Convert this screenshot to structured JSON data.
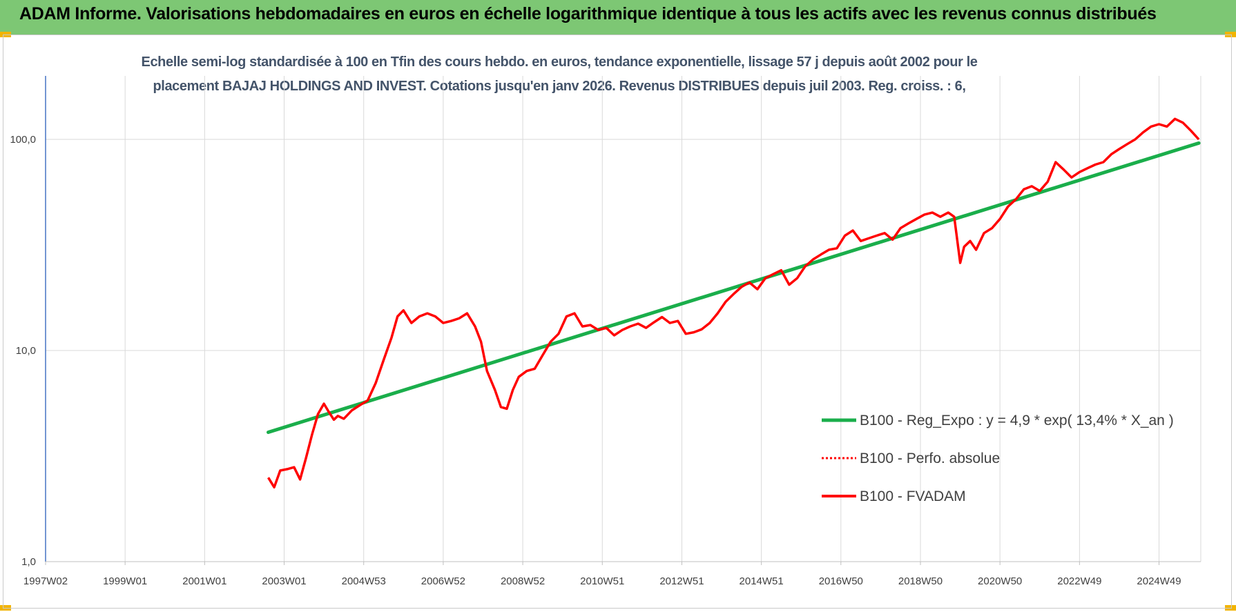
{
  "header": {
    "title": "ADAM Informe. Valorisations hebdomadaires en euros en échelle logarithmique identique à tous les actifs avec les revenus connus distribués"
  },
  "colors": {
    "banner": "#7dc774",
    "corner_accent": "#f2b400",
    "regression": "#1aae4b",
    "fvadam": "#ff0000",
    "subtitle_text": "#44546a",
    "grid": "#d9d9d9",
    "y_axis": "#4472c4"
  },
  "chart_data": {
    "type": "line",
    "title_line1": "Echelle semi-log standardisée à 100 en Tfin des cours hebdo. en euros, tendance exponentielle, lissage 57 j depuis août 2002 pour le",
    "title_line2": "placement BAJAJ HOLDINGS AND INVEST. Cotations jusqu'en janv 2026. Revenus DISTRIBUES depuis juil 2003. Reg. croiss. : 6,",
    "y_scale": "log",
    "ylim": [
      1,
      180
    ],
    "xlim": [
      1997.0,
      2026.05
    ],
    "grid": "vertical",
    "legend_position": "bottom-right",
    "y_ticks": [
      {
        "value": 1,
        "label": "1,0"
      },
      {
        "value": 10,
        "label": "10,0"
      },
      {
        "value": 100,
        "label": "100,0"
      }
    ],
    "x_ticks": [
      {
        "value": 1997.0,
        "label": "1997W02"
      },
      {
        "value": 1999.0,
        "label": "1999W01"
      },
      {
        "value": 2001.0,
        "label": "2001W01"
      },
      {
        "value": 2003.0,
        "label": "2003W01"
      },
      {
        "value": 2005.0,
        "label": "2004W53"
      },
      {
        "value": 2007.0,
        "label": "2006W52"
      },
      {
        "value": 2009.0,
        "label": "2008W52"
      },
      {
        "value": 2011.0,
        "label": "2010W51"
      },
      {
        "value": 2013.0,
        "label": "2012W51"
      },
      {
        "value": 2015.0,
        "label": "2014W51"
      },
      {
        "value": 2017.0,
        "label": "2016W50"
      },
      {
        "value": 2019.0,
        "label": "2018W50"
      },
      {
        "value": 2021.0,
        "label": "2020W50"
      },
      {
        "value": 2023.0,
        "label": "2022W49"
      },
      {
        "value": 2025.0,
        "label": "2024W49"
      }
    ],
    "series": [
      {
        "name": "B100 - Reg_Expo : y = 4,9 * exp( 13,4% *  X_an )",
        "style": "solid-thick",
        "x": [
          2002.6,
          2026.0
        ],
        "y": [
          4.1,
          96
        ]
      },
      {
        "name": "B100 - Perfo. absolue",
        "style": "dotted",
        "x": [],
        "y": []
      },
      {
        "name": "B100 - FVADAM",
        "style": "solid",
        "x": [
          2002.6,
          2002.75,
          2002.9,
          2003.1,
          2003.25,
          2003.4,
          2003.55,
          2003.7,
          2003.85,
          2004.0,
          2004.1,
          2004.25,
          2004.35,
          2004.5,
          2004.7,
          2004.9,
          2005.1,
          2005.3,
          2005.5,
          2005.7,
          2005.85,
          2006.0,
          2006.2,
          2006.4,
          2006.6,
          2006.8,
          2007.0,
          2007.2,
          2007.4,
          2007.6,
          2007.8,
          2007.95,
          2008.1,
          2008.3,
          2008.45,
          2008.6,
          2008.75,
          2008.9,
          2009.1,
          2009.3,
          2009.5,
          2009.7,
          2009.9,
          2010.1,
          2010.3,
          2010.5,
          2010.7,
          2010.9,
          2011.1,
          2011.3,
          2011.5,
          2011.7,
          2011.9,
          2012.1,
          2012.3,
          2012.5,
          2012.7,
          2012.9,
          2013.1,
          2013.3,
          2013.5,
          2013.7,
          2013.9,
          2014.1,
          2014.3,
          2014.5,
          2014.7,
          2014.9,
          2015.1,
          2015.3,
          2015.5,
          2015.7,
          2015.9,
          2016.1,
          2016.3,
          2016.5,
          2016.7,
          2016.9,
          2017.1,
          2017.3,
          2017.5,
          2017.7,
          2017.9,
          2018.1,
          2018.3,
          2018.5,
          2018.7,
          2018.9,
          2019.1,
          2019.3,
          2019.5,
          2019.7,
          2019.85,
          2020.0,
          2020.1,
          2020.25,
          2020.4,
          2020.6,
          2020.8,
          2021.0,
          2021.2,
          2021.4,
          2021.6,
          2021.8,
          2022.0,
          2022.2,
          2022.4,
          2022.6,
          2022.8,
          2023.0,
          2023.2,
          2023.4,
          2023.6,
          2023.8,
          2024.0,
          2024.2,
          2024.4,
          2024.6,
          2024.8,
          2025.0,
          2025.2,
          2025.4,
          2025.6,
          2025.8,
          2026.0
        ],
        "y": [
          2.5,
          2.25,
          2.7,
          2.75,
          2.8,
          2.45,
          3.1,
          4.0,
          5.0,
          5.6,
          5.2,
          4.7,
          4.9,
          4.75,
          5.2,
          5.5,
          5.8,
          7.0,
          9.0,
          11.5,
          14.5,
          15.5,
          13.5,
          14.5,
          15.0,
          14.5,
          13.5,
          13.8,
          14.2,
          15.0,
          13.0,
          11.0,
          8.0,
          6.5,
          5.4,
          5.3,
          6.5,
          7.5,
          8.0,
          8.2,
          9.5,
          11.0,
          12.0,
          14.5,
          15.0,
          13.0,
          13.2,
          12.5,
          12.8,
          11.8,
          12.5,
          13.0,
          13.4,
          12.8,
          13.6,
          14.4,
          13.5,
          13.8,
          12.0,
          12.2,
          12.6,
          13.5,
          15.0,
          17.0,
          18.5,
          20.0,
          21.0,
          19.5,
          22.0,
          23.0,
          24.0,
          20.5,
          22.0,
          25.0,
          27.0,
          28.5,
          30.0,
          30.5,
          35.0,
          37.0,
          33.0,
          34.0,
          35.0,
          36.0,
          33.5,
          38.0,
          40.0,
          42.0,
          44.0,
          45.0,
          43.0,
          45.0,
          43.0,
          26.0,
          31.0,
          33.0,
          30.0,
          36.0,
          38.0,
          42.0,
          48.0,
          52.0,
          58.0,
          60.0,
          57.0,
          63.0,
          78.0,
          72.0,
          66.0,
          70.0,
          73.0,
          76.0,
          78.0,
          85.0,
          90.0,
          95.0,
          100.0,
          108.0,
          115.0,
          118.0,
          115.0,
          125.0,
          120.0,
          110.0,
          100.0
        ]
      }
    ]
  }
}
